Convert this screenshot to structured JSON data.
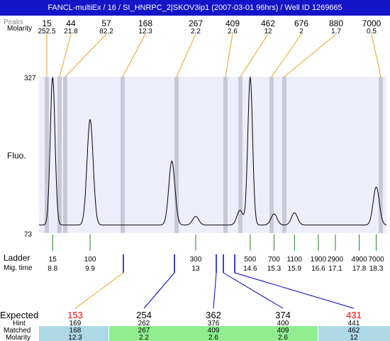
{
  "window": {
    "title": "FANCL-multiEx / 16 / SI_HNRPC_2|SKOV3ip1 (2007-03-01 96hrs) / Well ID 1269665"
  },
  "row_labels": {
    "peaks_hidden": "Peaks",
    "molarity": "Molarity",
    "fluo": "Fluo.",
    "ladder": "Ladder",
    "mig_time": "Mig. time",
    "expected": "Expected",
    "hint": "Hint",
    "matched": "Matched",
    "molarity_bottom": "Molarity"
  },
  "colors": {
    "titlebar": "#1414c8",
    "plot_band": "#eeeefa",
    "peak_band": "#c8c8d8",
    "orange_connector": "#f0a020",
    "blue_connector": "#0000cc",
    "green_tick": "#208020",
    "expected_red": "#ff0000",
    "matched_blue": "#add8e6",
    "matched_green": "#90ee90"
  },
  "chart_data": {
    "type": "line",
    "y_axis": {
      "min": 73,
      "max": 327,
      "ticks": [
        "327",
        "73"
      ]
    },
    "y_label": "Fluo.",
    "top_markers": [
      {
        "size": "15",
        "molarity": "252.5"
      },
      {
        "size": "44",
        "molarity": "21.8"
      },
      {
        "size": "57",
        "molarity": "82.2"
      },
      {
        "size": "168",
        "molarity": "12.3"
      },
      {
        "size": "267",
        "molarity": "2.2"
      },
      {
        "size": "409",
        "molarity": "2.6"
      },
      {
        "size": "462",
        "molarity": "12"
      },
      {
        "size": "676",
        "molarity": "2"
      },
      {
        "size": "880",
        "molarity": "1.7"
      },
      {
        "size": "7000",
        "molarity": "0.5"
      }
    ],
    "ladder": [
      {
        "size": "15",
        "mig_time": "8.8"
      },
      {
        "size": "100",
        "mig_time": "9.9"
      },
      {
        "size": "300",
        "mig_time": "13"
      },
      {
        "size": "500",
        "mig_time": "14.6"
      },
      {
        "size": "700",
        "mig_time": "15.3"
      },
      {
        "size": "1100",
        "mig_time": "15.9"
      },
      {
        "size": "1900",
        "mig_time": "16.6"
      },
      {
        "size": "2900",
        "mig_time": "17.1"
      },
      {
        "size": "4900",
        "mig_time": "17.8"
      },
      {
        "size": "7000",
        "mig_time": "18.3"
      }
    ],
    "expected": [
      {
        "expected": "153",
        "hint": "169",
        "matched": "168",
        "molarity": "12.3",
        "flag": "red"
      },
      {
        "expected": "254",
        "hint": "262",
        "matched": "267",
        "molarity": "2.2",
        "flag": "ok"
      },
      {
        "expected": "362",
        "hint": "376",
        "matched": "409",
        "molarity": "2.6",
        "flag": "ok"
      },
      {
        "expected": "374",
        "hint": "400",
        "matched": "409",
        "molarity": "2.6",
        "flag": "ok"
      },
      {
        "expected": "431",
        "hint": "441",
        "matched": "462",
        "molarity": "12",
        "flag": "red"
      }
    ],
    "trace": {
      "baseline_level": 86,
      "peaks": [
        {
          "mig_time": "8.8",
          "height": 327
        },
        {
          "mig_time": "9.9",
          "height": 258
        },
        {
          "mig_time": "12.3",
          "height": 190
        },
        {
          "mig_time": "13.0",
          "height": 100
        },
        {
          "mig_time": "14.3",
          "height": 110
        },
        {
          "mig_time": "14.6",
          "height": 327
        },
        {
          "mig_time": "15.3",
          "height": 104
        },
        {
          "mig_time": "15.9",
          "height": 106
        },
        {
          "mig_time": "18.3",
          "height": 148
        }
      ]
    }
  }
}
